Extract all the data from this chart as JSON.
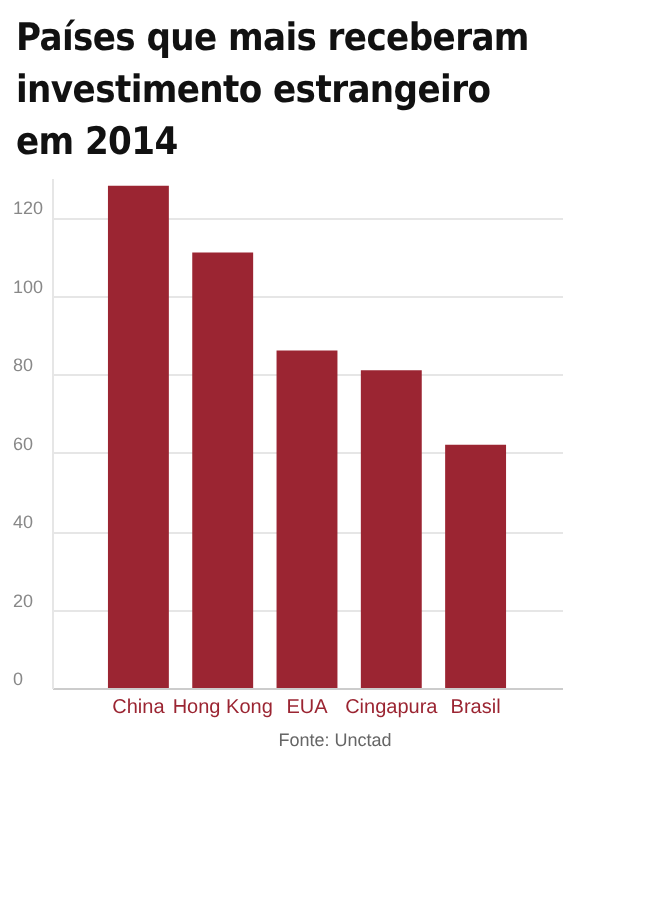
{
  "chart_data": {
    "type": "bar",
    "title": "Países que mais receberam investimento estrangeiro em 2014",
    "categories": [
      "China",
      "Hong Kong",
      "EUA",
      "Cingapura",
      "Brasil"
    ],
    "values": [
      128,
      111,
      86,
      81,
      62
    ],
    "color": "#9b2532",
    "ylim": [
      0,
      130
    ],
    "yticks": [
      0,
      20,
      40,
      60,
      80,
      100,
      120
    ],
    "grid": "y",
    "annotations": [
      "Fonte: Unctad"
    ]
  }
}
